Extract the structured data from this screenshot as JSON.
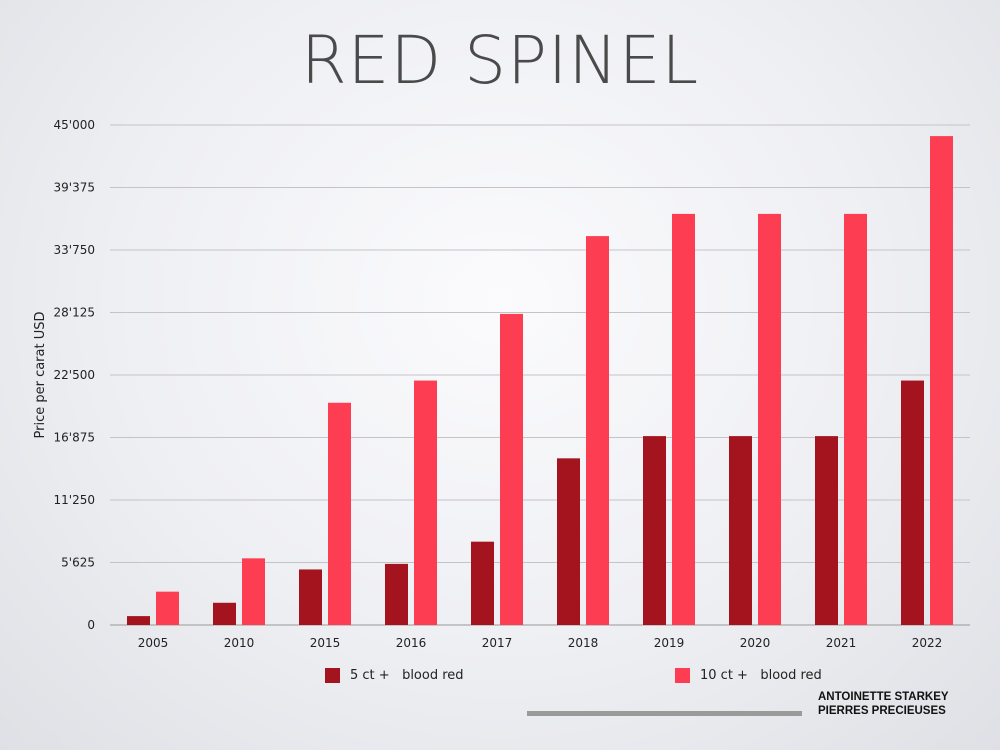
{
  "title": "RED SPINEL",
  "chart_data": {
    "type": "bar",
    "categories": [
      "2005",
      "2010",
      "2015",
      "2016",
      "2017",
      "2018",
      "2019",
      "2020",
      "2021",
      "2022"
    ],
    "series": [
      {
        "name": "5 ct +   blood red",
        "color": "#a3141e",
        "values": [
          800,
          2000,
          5000,
          5500,
          7500,
          15000,
          17000,
          17000,
          17000,
          22000
        ]
      },
      {
        "name": "10 ct +   blood red",
        "color": "#fd3d52",
        "values": [
          3000,
          6000,
          20000,
          22000,
          28000,
          35000,
          37000,
          37000,
          37000,
          44000
        ]
      }
    ],
    "ylabel": "Price per carat USD",
    "xlabel": "",
    "ylim": [
      0,
      45000
    ],
    "yticks": [
      0,
      5625,
      11250,
      16875,
      22500,
      28125,
      33750,
      39375,
      45000
    ],
    "ytick_labels": [
      "0",
      "5'625",
      "11'250",
      "16'875",
      "22'500",
      "28'125",
      "33'750",
      "39'375",
      "45'000"
    ],
    "grid": true,
    "legend_position": "bottom"
  },
  "legend": {
    "item1": "5 ct +   blood red",
    "item2": "10 ct +   blood red"
  },
  "credit": {
    "line1": "ANTOINETTE STARKEY",
    "line2": "PIERRES PRECIEUSES"
  }
}
